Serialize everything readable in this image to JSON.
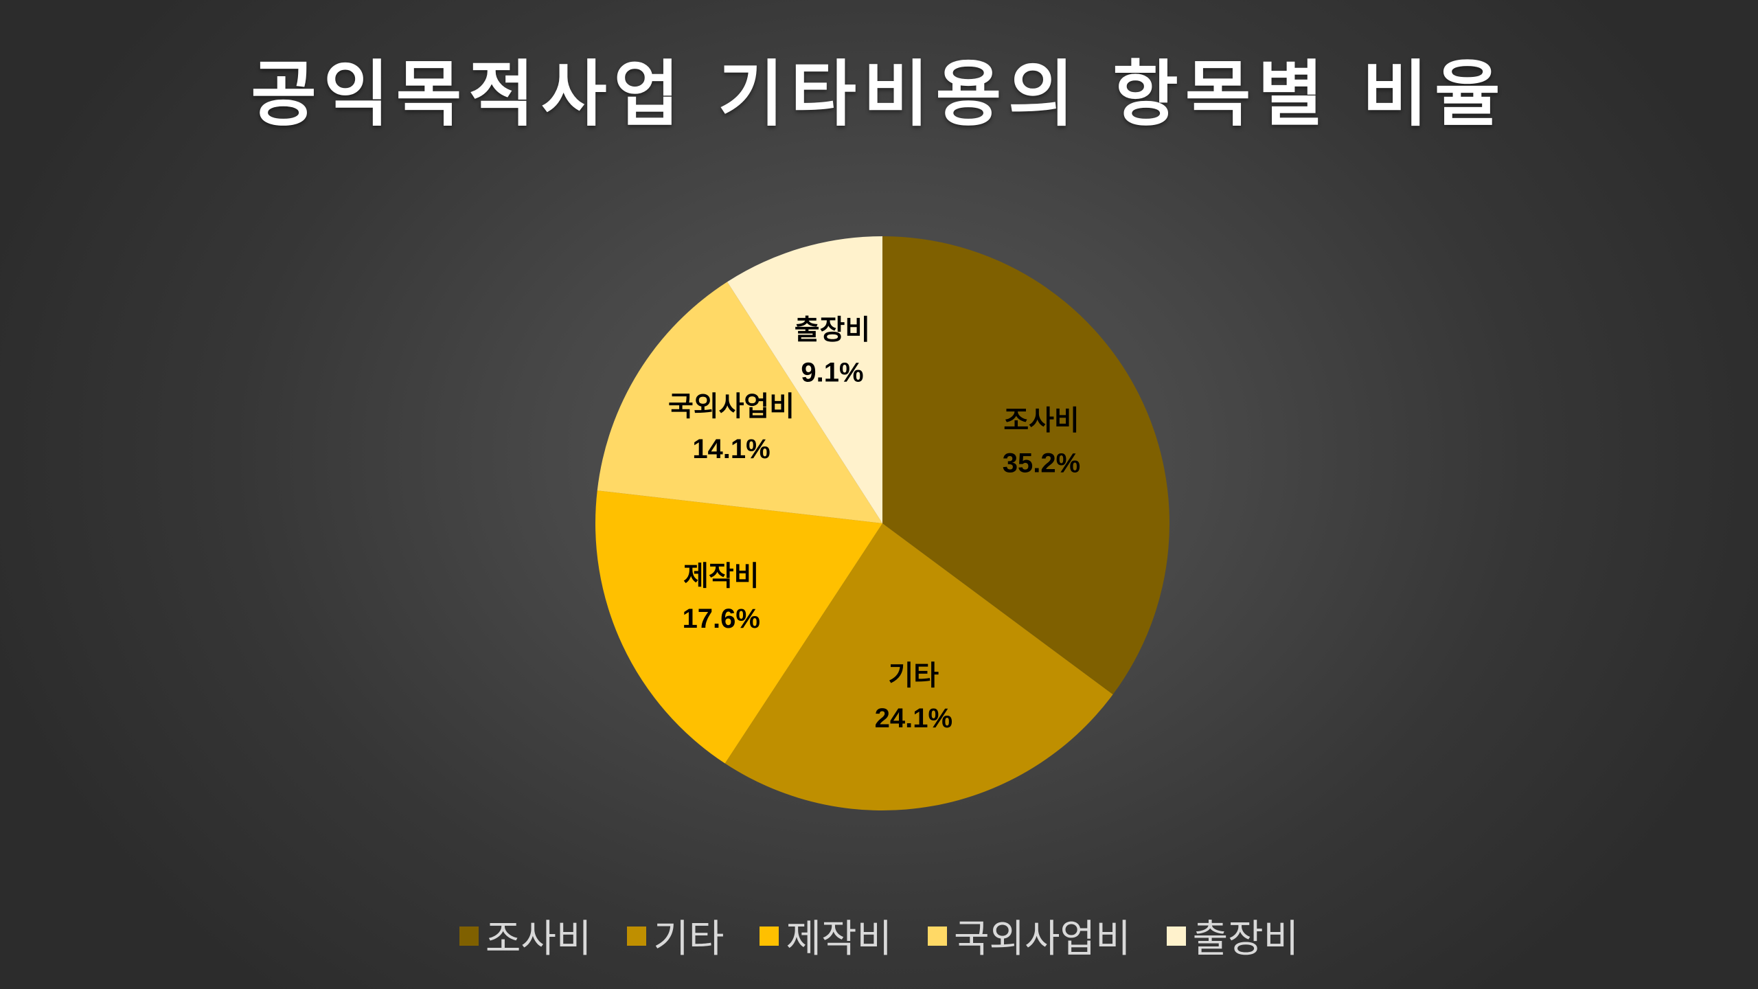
{
  "chart_data": {
    "type": "pie",
    "title": "공익목적사업 기타비용의 항목별 비율",
    "categories": [
      "조사비",
      "기타",
      "제작비",
      "국외사업비",
      "출장비"
    ],
    "values": [
      35.2,
      24.1,
      17.6,
      14.1,
      9.1
    ],
    "value_labels": [
      "35.2%",
      "24.1%",
      "17.6%",
      "14.1%",
      "9.1%"
    ],
    "colors": [
      "#7f6000",
      "#bf8f00",
      "#ffc000",
      "#ffd966",
      "#fff2cc"
    ],
    "start_angle_deg": 0,
    "direction": "clockwise",
    "legend_position": "bottom",
    "data_labels": true
  }
}
